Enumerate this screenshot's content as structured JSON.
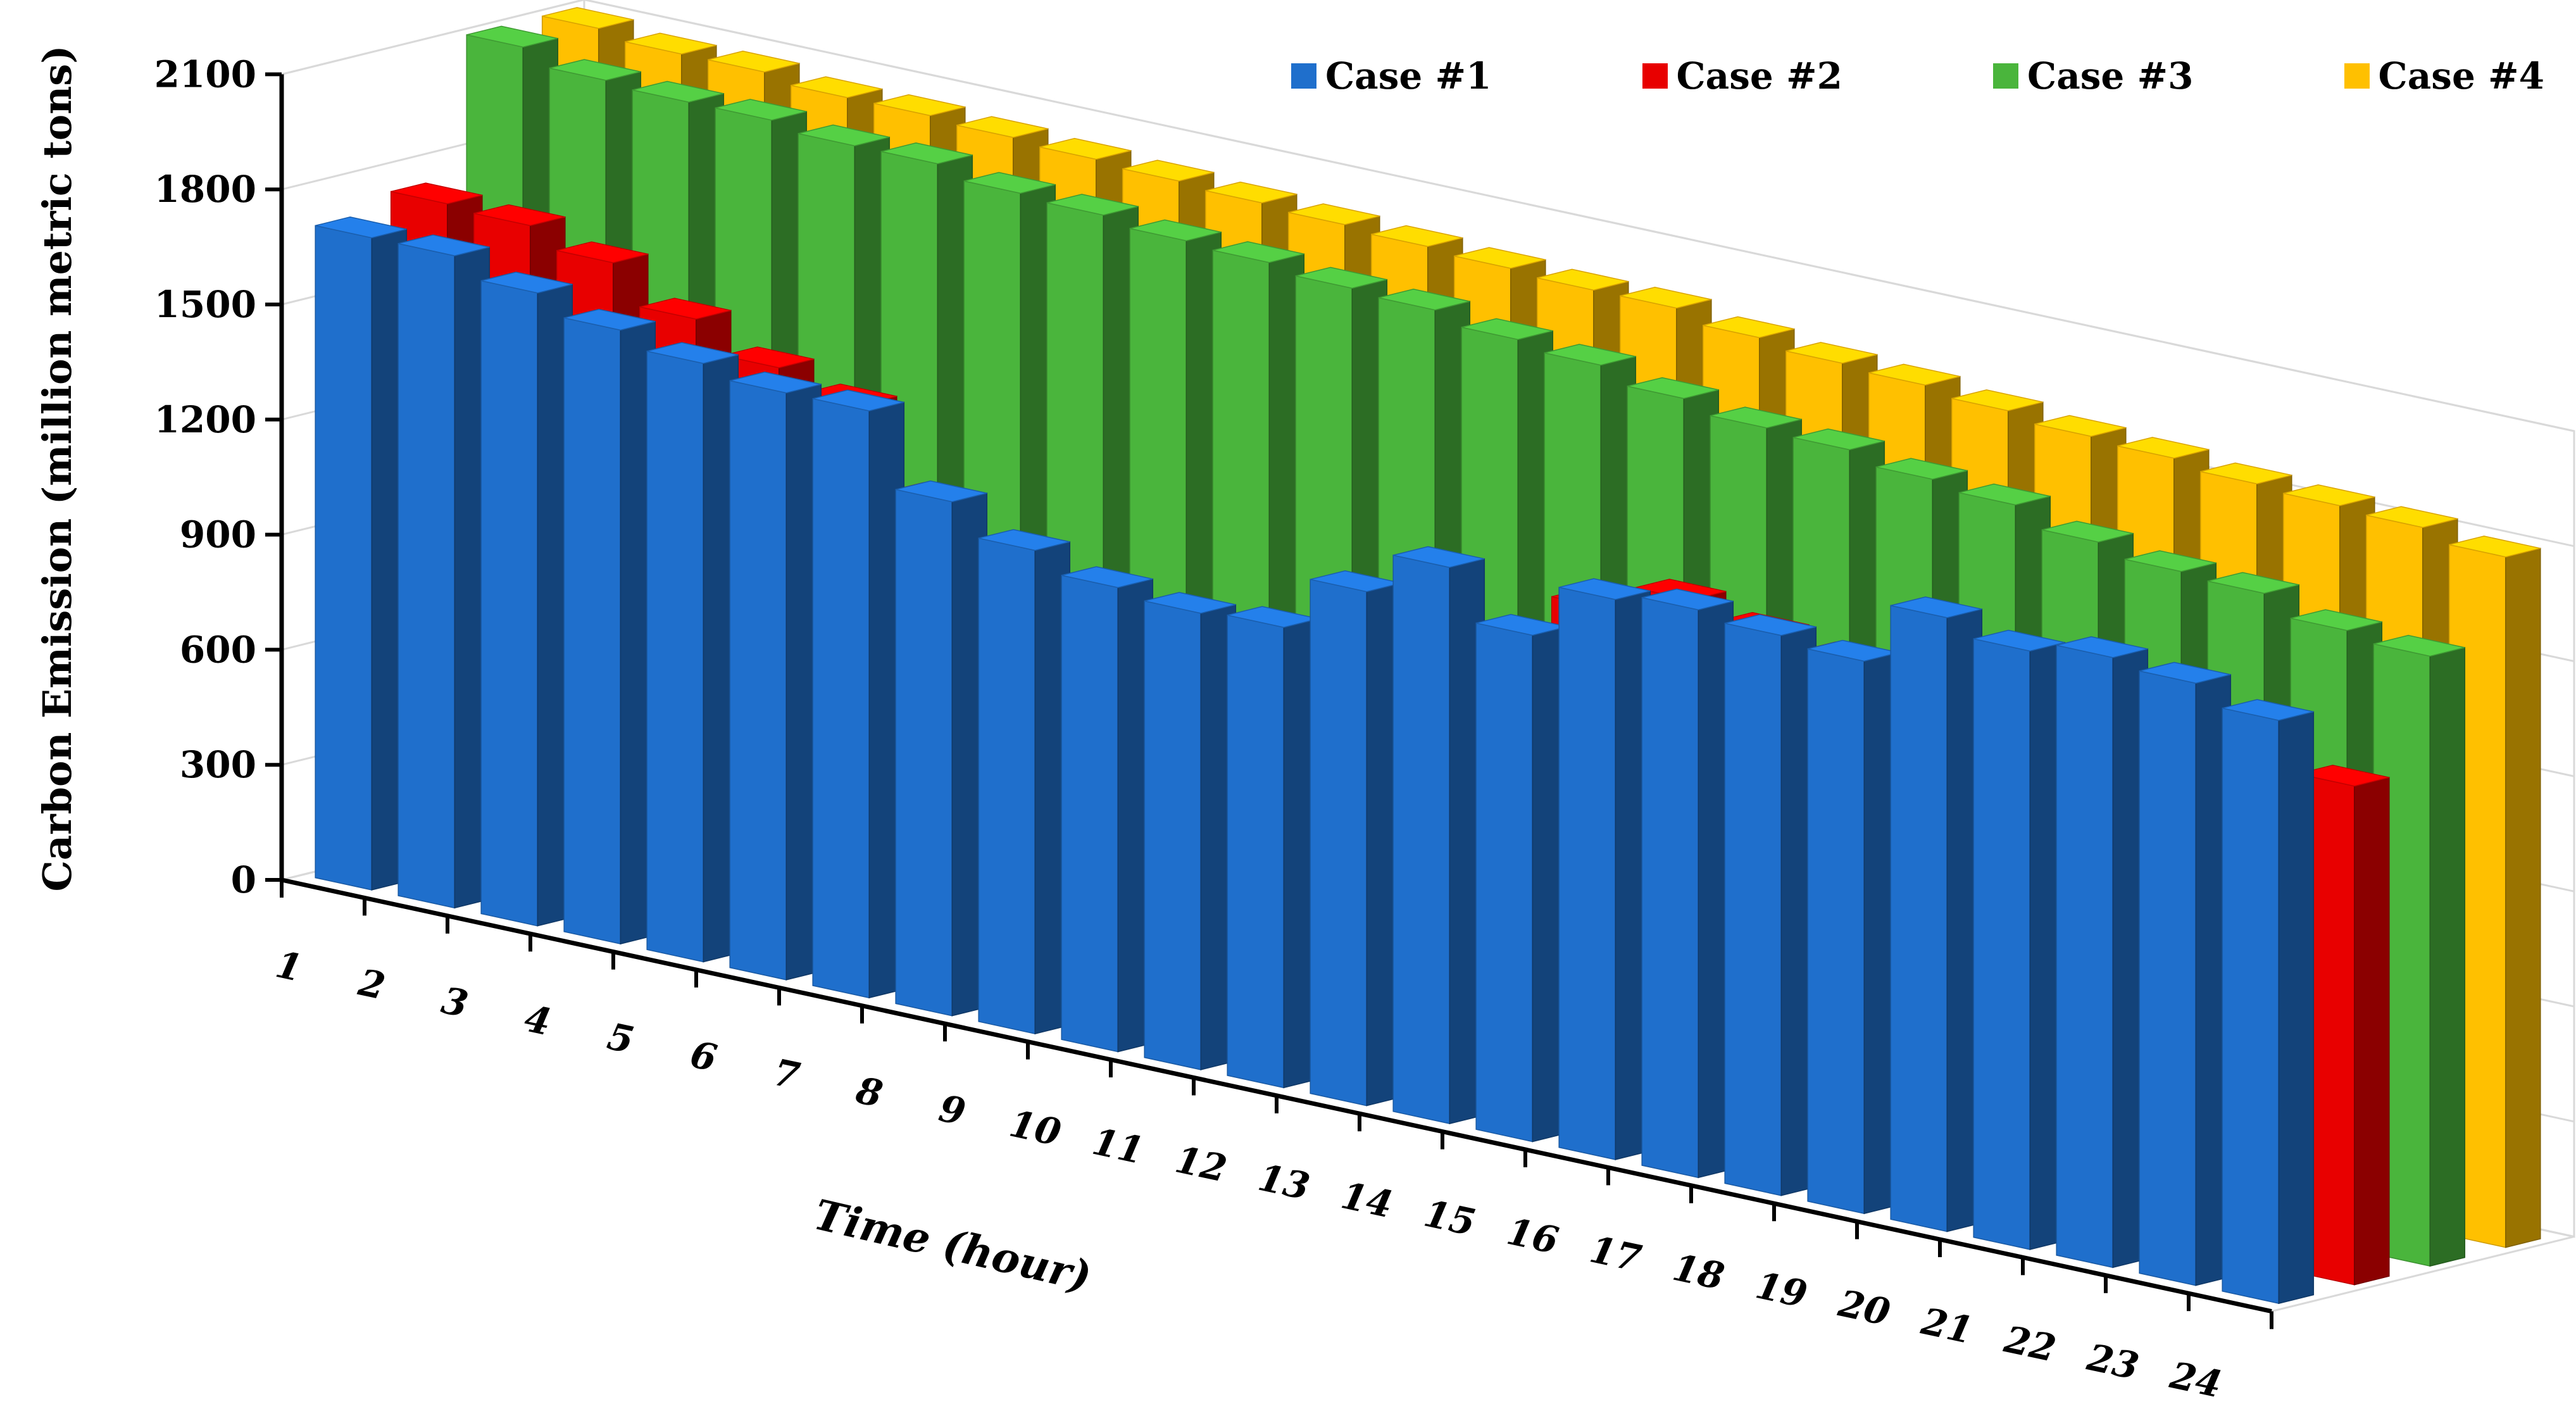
{
  "chart_data": {
    "type": "bar",
    "style": "3d-clustered-depth",
    "title": "",
    "xlabel": "Time (hour)",
    "ylabel": "Carbon Emission (million metric tons)",
    "ylim": [
      0,
      2100
    ],
    "yticks": [
      0,
      300,
      600,
      900,
      1200,
      1500,
      1800,
      2100
    ],
    "grid": true,
    "legend_position": "top-right",
    "categories": [
      "1",
      "2",
      "3",
      "4",
      "5",
      "6",
      "7",
      "8",
      "9",
      "10",
      "11",
      "12",
      "13",
      "14",
      "15",
      "16",
      "17",
      "18",
      "19",
      "20",
      "21",
      "22",
      "23",
      "24"
    ],
    "series": [
      {
        "name": "Case #1",
        "color": "#1f6fcc",
        "values": [
          1700,
          1700,
          1650,
          1600,
          1560,
          1530,
          1530,
          1340,
          1260,
          1210,
          1190,
          1200,
          1340,
          1450,
          1320,
          1460,
          1480,
          1460,
          1440,
          1600,
          1560,
          1590,
          1570,
          1520
        ]
      },
      {
        "name": "Case #2",
        "color": "#e80000",
        "values": [
          1740,
          1730,
          1680,
          1580,
          1500,
          1450,
          1240,
          1030,
          960,
          930,
          860,
          800,
          790,
          1020,
          1340,
          1410,
          1370,
          1340,
          1320,
          1420,
          1360,
          1340,
          1330,
          1300
        ]
      },
      {
        "name": "Case #3",
        "color": "#4ab53c",
        "values": [
          2100,
          2060,
          2050,
          2050,
          2030,
          2030,
          2000,
          1990,
          1970,
          1960,
          1940,
          1930,
          1900,
          1880,
          1840,
          1810,
          1800,
          1770,
          1750,
          1700,
          1670,
          1660,
          1610,
          1590
        ]
      },
      {
        "name": "Case #4",
        "color": "#ffc000",
        "values": [
          2100,
          2080,
          2080,
          2060,
          2060,
          2050,
          2040,
          2030,
          2020,
          2010,
          2000,
          1990,
          1980,
          1980,
          1950,
          1930,
          1920,
          1900,
          1880,
          1870,
          1850,
          1840,
          1830,
          1800
        ]
      }
    ]
  }
}
